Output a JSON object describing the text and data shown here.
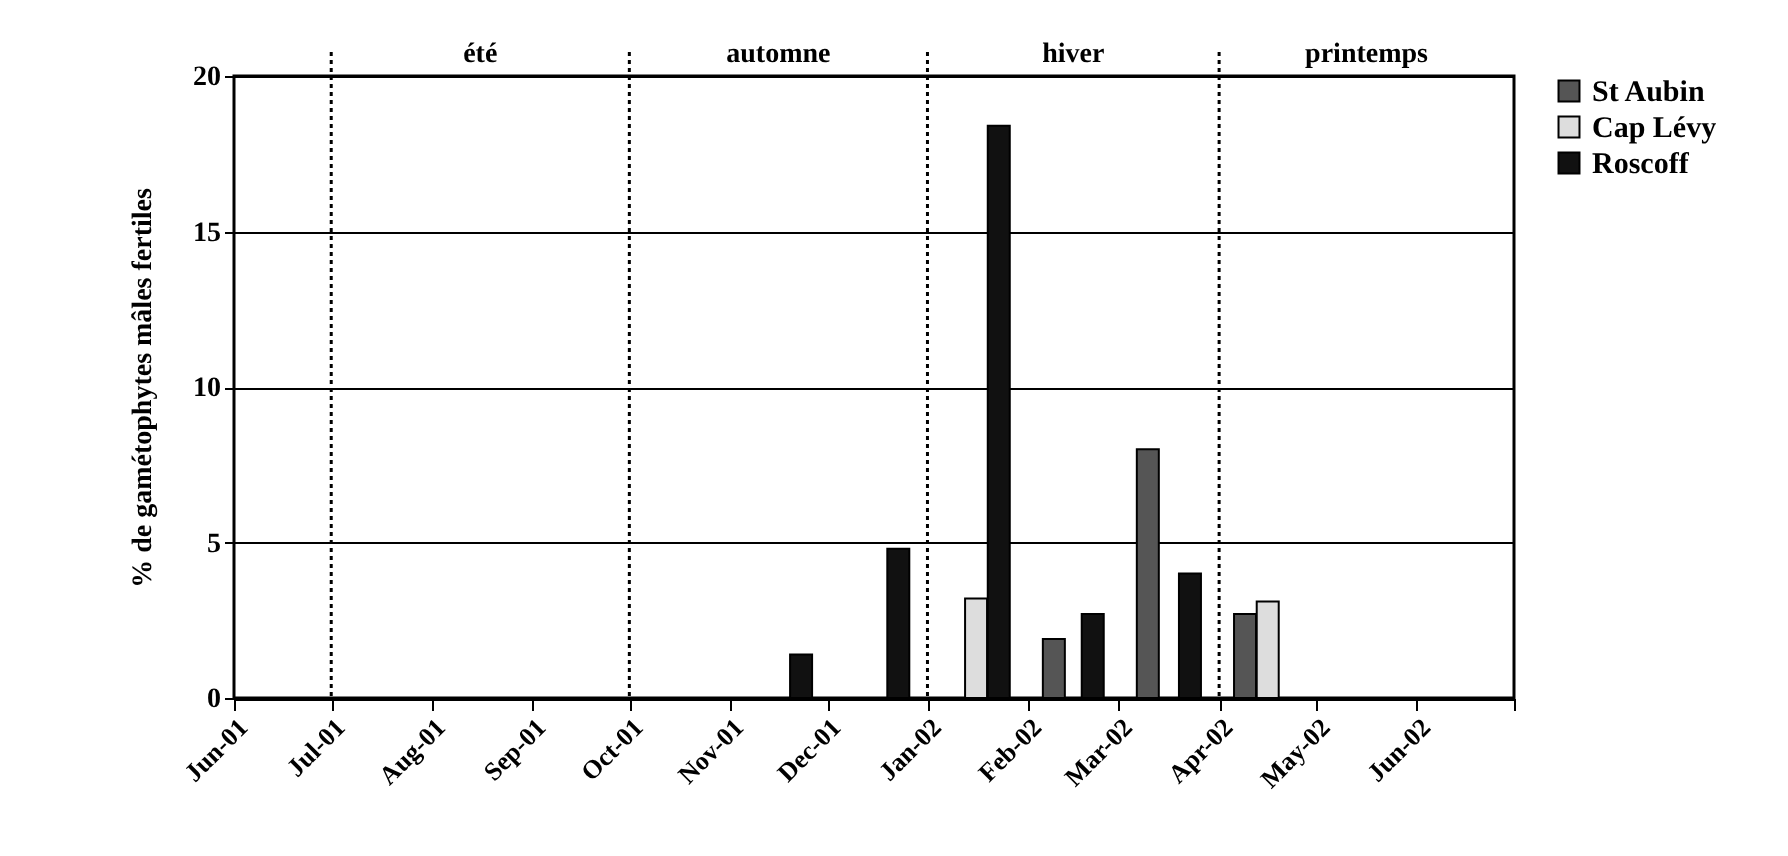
{
  "chart_data": {
    "type": "bar",
    "ylabel": "% de gamétophytes mâles fertiles",
    "xlim": [
      "2001-06-01",
      "2002-07-01"
    ],
    "xticks": [
      {
        "value": "2001-06-01",
        "label": "Jun-01"
      },
      {
        "value": "2001-07-01",
        "label": "Jul-01"
      },
      {
        "value": "2001-08-01",
        "label": "Aug-01"
      },
      {
        "value": "2001-09-01",
        "label": "Sep-01"
      },
      {
        "value": "2001-10-01",
        "label": "Oct-01"
      },
      {
        "value": "2001-11-01",
        "label": "Nov-01"
      },
      {
        "value": "2001-12-01",
        "label": "Dec-01"
      },
      {
        "value": "2002-01-01",
        "label": "Jan-02"
      },
      {
        "value": "2002-02-01",
        "label": "Feb-02"
      },
      {
        "value": "2002-03-01",
        "label": "Mar-02"
      },
      {
        "value": "2002-04-01",
        "label": "Apr-02"
      },
      {
        "value": "2002-05-01",
        "label": "May-02"
      },
      {
        "value": "2002-06-01",
        "label": "Jun-02"
      },
      {
        "value": "2002-07-01",
        "label": null
      }
    ],
    "ylim": [
      0,
      20
    ],
    "yticks": [
      0,
      5,
      10,
      15,
      20
    ],
    "grid": "y",
    "legend": "right",
    "series": [
      {
        "name": "St Aubin",
        "color": "#555555",
        "x": [
          "2002-02-09",
          "2002-03-10",
          "2002-04-09"
        ],
        "values": [
          1.9,
          8.0,
          2.7
        ]
      },
      {
        "name": "Cap Lévy",
        "color": "#dddddd",
        "x": [
          "2002-01-16",
          "2002-04-16"
        ],
        "values": [
          3.2,
          3.1
        ]
      },
      {
        "name": "Roscoff",
        "color": "#111111",
        "x": [
          "2001-11-23",
          "2001-12-23",
          "2002-01-23",
          "2002-02-21",
          "2002-03-23"
        ],
        "values": [
          1.4,
          4.8,
          18.4,
          2.7,
          4.0
        ]
      }
    ],
    "ref_lines": [
      {
        "axis": "x",
        "value": "2001-07-01",
        "line_style": "dotted"
      },
      {
        "axis": "x",
        "value": "2001-10-01",
        "line_style": "dotted"
      },
      {
        "axis": "x",
        "value": "2002-01-01",
        "line_style": "dotted"
      },
      {
        "axis": "x",
        "value": "2002-04-01",
        "line_style": "dotted"
      }
    ],
    "annotations": [
      "été",
      "automne",
      "hiver",
      "printemps"
    ]
  }
}
